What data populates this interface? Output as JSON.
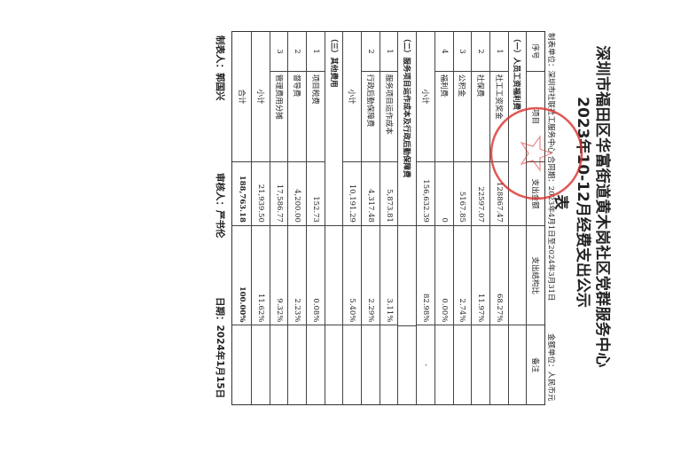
{
  "title_line1": "深圳市福田区华富街道黄木岗社区党群服务中心",
  "title_line2": "2023年10-12月经费支出公示表",
  "info": "制表单位：深圳市社联社工服务中心 合同期：2023年4月1日至2024年3月31日",
  "unit": "金额单位：人民币元",
  "stamp_text": "深圳市社联社工服务中心",
  "stamp_color": "#d9302c",
  "headers": [
    "序号",
    "项目",
    "支出金额",
    "支出结构比",
    "备注"
  ],
  "rows": [
    {
      "type": "sec",
      "cells": [
        "（一）人员工资福利费",
        "",
        "",
        "",
        ""
      ]
    },
    {
      "type": "item",
      "cells": [
        "1",
        "社工工资奖金",
        "128867.47",
        "68.27%",
        ""
      ]
    },
    {
      "type": "item",
      "cells": [
        "2",
        "社保费",
        "22597.07",
        "11.97%",
        ""
      ]
    },
    {
      "type": "item",
      "cells": [
        "3",
        "公积金",
        "5167.85",
        "2.74%",
        ""
      ]
    },
    {
      "type": "item",
      "cells": [
        "4",
        "福利费",
        "0",
        "0.00%",
        ""
      ]
    },
    {
      "type": "sub",
      "cells": [
        "小计",
        "",
        "156,632.39",
        "82.98%",
        "-"
      ]
    },
    {
      "type": "sec",
      "cells": [
        "（二）服务项目运作成本及行政后勤保障费",
        "",
        "",
        "",
        ""
      ]
    },
    {
      "type": "item",
      "cells": [
        "1",
        "服务项目运作成本",
        "5,873.81",
        "3.11%",
        ""
      ]
    },
    {
      "type": "item",
      "cells": [
        "2",
        "行政后勤保障费",
        "4,317.48",
        "2.29%",
        ""
      ]
    },
    {
      "type": "sub",
      "cells": [
        "小计",
        "",
        "10,191.29",
        "5.40%",
        ""
      ]
    },
    {
      "type": "sec",
      "cells": [
        "（三）其他费用",
        "",
        "",
        "",
        ""
      ]
    },
    {
      "type": "item",
      "cells": [
        "1",
        "项目税费",
        "152.73",
        "0.08%",
        ""
      ]
    },
    {
      "type": "item",
      "cells": [
        "2",
        "督导费",
        "4,200.00",
        "2.23%",
        ""
      ]
    },
    {
      "type": "item",
      "cells": [
        "3",
        "管理费用分摊",
        "17,586.77",
        "9.32%",
        ""
      ]
    },
    {
      "type": "sub",
      "cells": [
        "小计",
        "",
        "21,939.50",
        "11.62%",
        ""
      ]
    },
    {
      "type": "total",
      "cells": [
        "合计",
        "",
        "188,763.18",
        "100.00%",
        ""
      ]
    }
  ],
  "footer": {
    "maker": "制表人：郭国兴",
    "reviewer": "审核人：严书伦",
    "date": "日期：2024年1月15日"
  }
}
